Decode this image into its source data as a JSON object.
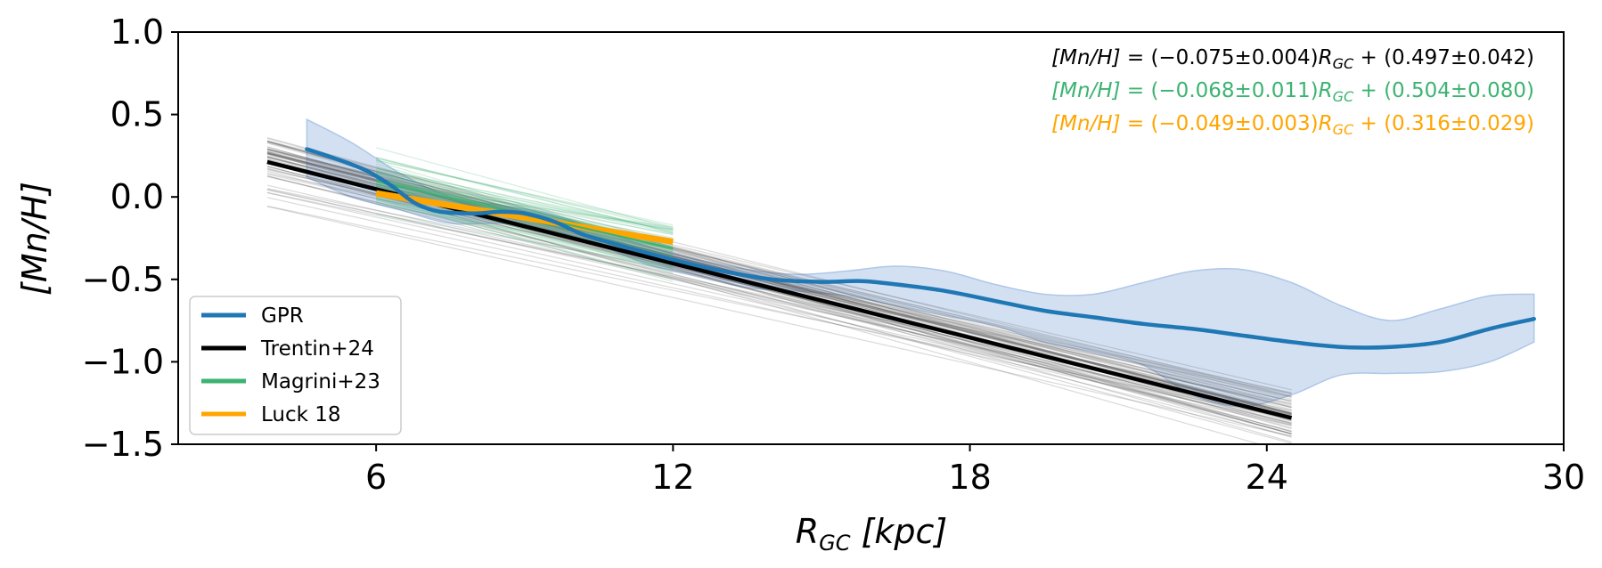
{
  "chart_data": {
    "type": "line",
    "xlabel": "R_GC [kpc]",
    "xlabel_main": "R",
    "xlabel_sub": "GC",
    "xlabel_unit": " [kpc]",
    "ylabel": "[Mn/H]",
    "xlim": [
      2,
      30
    ],
    "ylim": [
      -1.5,
      1.0
    ],
    "xticks": [
      {
        "value": 6,
        "label": "6"
      },
      {
        "value": 12,
        "label": "12"
      },
      {
        "value": 18,
        "label": "18"
      },
      {
        "value": 24,
        "label": "24"
      },
      {
        "value": 30,
        "label": "30"
      }
    ],
    "yticks": [
      {
        "value": 1.0,
        "label": "1.0"
      },
      {
        "value": 0.5,
        "label": "0.5"
      },
      {
        "value": 0.0,
        "label": "0.0"
      },
      {
        "value": -0.5,
        "label": "−0.5"
      },
      {
        "value": -1.0,
        "label": "−1.0"
      },
      {
        "value": -1.5,
        "label": "−1.5"
      }
    ],
    "series": [
      {
        "name": "GPR",
        "color": "#1f77b4",
        "band_color": "#aec7e8",
        "points": [
          [
            4.6,
            0.29
          ],
          [
            5.2,
            0.23
          ],
          [
            5.8,
            0.16
          ],
          [
            6.3,
            0.07
          ],
          [
            6.8,
            -0.04
          ],
          [
            7.3,
            -0.09
          ],
          [
            8.0,
            -0.1
          ],
          [
            8.5,
            -0.09
          ],
          [
            9.0,
            -0.1
          ],
          [
            9.6,
            -0.15
          ],
          [
            10.2,
            -0.23
          ],
          [
            11.0,
            -0.3
          ],
          [
            12.0,
            -0.38
          ],
          [
            13.0,
            -0.45
          ],
          [
            14.0,
            -0.5
          ],
          [
            15.0,
            -0.515
          ],
          [
            15.8,
            -0.51
          ],
          [
            16.5,
            -0.53
          ],
          [
            17.5,
            -0.57
          ],
          [
            18.5,
            -0.63
          ],
          [
            19.5,
            -0.69
          ],
          [
            20.5,
            -0.73
          ],
          [
            21.5,
            -0.77
          ],
          [
            22.5,
            -0.8
          ],
          [
            23.5,
            -0.84
          ],
          [
            24.5,
            -0.88
          ],
          [
            25.5,
            -0.91
          ],
          [
            26.5,
            -0.91
          ],
          [
            27.5,
            -0.88
          ],
          [
            28.5,
            -0.8
          ],
          [
            29.4,
            -0.74
          ]
        ],
        "band_upper": [
          [
            4.6,
            0.47
          ],
          [
            5.5,
            0.33
          ],
          [
            6.5,
            0.14
          ],
          [
            7.5,
            0.0
          ],
          [
            8.5,
            -0.05
          ],
          [
            9.5,
            -0.1
          ],
          [
            10.5,
            -0.2
          ],
          [
            11.5,
            -0.3
          ],
          [
            12.5,
            -0.38
          ],
          [
            13.5,
            -0.44
          ],
          [
            14.5,
            -0.47
          ],
          [
            15.5,
            -0.45
          ],
          [
            16.5,
            -0.42
          ],
          [
            17.5,
            -0.45
          ],
          [
            18.5,
            -0.53
          ],
          [
            19.5,
            -0.59
          ],
          [
            20.5,
            -0.59
          ],
          [
            21.5,
            -0.52
          ],
          [
            22.5,
            -0.45
          ],
          [
            23.5,
            -0.44
          ],
          [
            24.5,
            -0.52
          ],
          [
            25.5,
            -0.66
          ],
          [
            26.5,
            -0.75
          ],
          [
            27.5,
            -0.68
          ],
          [
            28.5,
            -0.6
          ],
          [
            29.4,
            -0.59
          ]
        ],
        "band_lower": [
          [
            29.4,
            -0.88
          ],
          [
            28.5,
            -1.0
          ],
          [
            27.5,
            -1.06
          ],
          [
            26.5,
            -1.07
          ],
          [
            25.5,
            -1.08
          ],
          [
            24.5,
            -1.2
          ],
          [
            23.5,
            -1.27
          ],
          [
            22.5,
            -1.2
          ],
          [
            21.5,
            -1.02
          ],
          [
            20.5,
            -0.94
          ],
          [
            19.5,
            -0.88
          ],
          [
            18.5,
            -0.78
          ],
          [
            17.5,
            -0.72
          ],
          [
            16.5,
            -0.66
          ],
          [
            15.5,
            -0.6
          ],
          [
            14.5,
            -0.57
          ],
          [
            13.5,
            -0.55
          ],
          [
            12.5,
            -0.48
          ],
          [
            11.5,
            -0.41
          ],
          [
            10.5,
            -0.29
          ],
          [
            9.5,
            -0.2
          ],
          [
            8.5,
            -0.16
          ],
          [
            7.5,
            -0.16
          ],
          [
            6.5,
            -0.08
          ],
          [
            5.5,
            0.0
          ],
          [
            4.6,
            0.12
          ]
        ]
      },
      {
        "name": "Trentin+24",
        "color": "#000000",
        "slope": -0.075,
        "intercept": 0.497,
        "slope_err": 0.004,
        "intercept_err": 0.042,
        "x_range": [
          3.8,
          24.5
        ]
      },
      {
        "name": "Magrini+23",
        "color": "#3cb371",
        "slope": -0.068,
        "intercept": 0.504,
        "slope_err": 0.011,
        "intercept_err": 0.08,
        "x_range": [
          6.0,
          12.0
        ]
      },
      {
        "name": "Luck 18",
        "color": "#ffa500",
        "slope": -0.049,
        "intercept": 0.316,
        "slope_err": 0.003,
        "intercept_err": 0.029,
        "x_range": [
          6.0,
          12.0
        ]
      }
    ],
    "equations": [
      {
        "text_lhs": "[Mn/H]",
        "text_mid": " = (−0.075±0.004)",
        "text_var": "R",
        "text_sub": "GC",
        "text_rhs": " + (0.497±0.042)",
        "color": "#000000"
      },
      {
        "text_lhs": "[Mn/H]",
        "text_mid": " = (−0.068±0.011)",
        "text_var": "R",
        "text_sub": "GC",
        "text_rhs": " + (0.504±0.080)",
        "color": "#3cb371"
      },
      {
        "text_lhs": "[Mn/H]",
        "text_mid": " = (−0.049±0.003)",
        "text_var": "R",
        "text_sub": "GC",
        "text_rhs": " + (0.316±0.029)",
        "color": "#ffa500"
      }
    ],
    "legend": {
      "position": "lower-left",
      "entries": [
        "GPR",
        "Trentin+24",
        "Magrini+23",
        "Luck 18"
      ]
    }
  }
}
